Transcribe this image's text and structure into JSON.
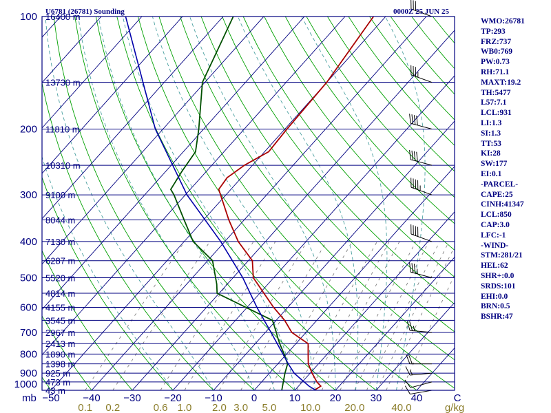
{
  "header": {
    "station": "U6781 (26781) Sounding",
    "time": "0000Z 25 JUN 25"
  },
  "indices": [
    "WMO:26781",
    "TP:293",
    "FRZ:737",
    "WB0:769",
    "PW:0.73",
    "RH:71.1",
    "MAXT:19.2",
    "TH:5477",
    "L57:7.1",
    "LCL:931",
    "LI:1.3",
    "SI:1.3",
    "TT:53",
    "KI:28",
    "SW:177",
    "EI:0.1",
    "-PARCEL-",
    "CAPE:25",
    "CINH:41347",
    "LCL:850",
    "CAP:3.0",
    "LFC:-1",
    "-WIND-",
    "STM:281/21",
    "HEL:62",
    "SHR+:0.0",
    "SRDS:101",
    "EHI:0.0",
    "BRN:0.5",
    "BSHR:47"
  ],
  "colors": {
    "frame": "#000080",
    "isobar": "#000080",
    "isotherm": "#000080",
    "dry_adiabat": "#00a000",
    "moist_adiabat": "#4aa0a0",
    "mixing_ratio": "#808080",
    "temperature": "#aa0000",
    "dewpoint": "#005000",
    "parcel": "#0000aa",
    "wind_barb": "#000000",
    "mixing_labels": "#8b7d2a"
  },
  "chart_data": {
    "type": "skew-t",
    "y_axis": {
      "unit_label": "mb",
      "scale": "log-pressure",
      "range": [
        1000,
        100
      ],
      "tick_labels": [
        "100",
        "200",
        "300",
        "400",
        "500",
        "600",
        "700",
        "800",
        "900",
        "1000"
      ],
      "tick_values": [
        100,
        200,
        300,
        400,
        500,
        600,
        700,
        800,
        900,
        1000
      ]
    },
    "x_axis": {
      "label": "",
      "tick_labels": [
        "−50",
        "−40",
        "−30",
        "−20",
        "−10",
        "0",
        "10",
        "20",
        "30",
        "40",
        "C"
      ],
      "tick_values": [
        -50,
        -40,
        -30,
        -20,
        -10,
        0,
        10,
        20,
        30,
        40,
        50
      ]
    },
    "mixing_ratio_axis": {
      "unit_label": "g/kg",
      "tick_labels": [
        "0.1",
        "0.2",
        "0.6",
        "1.0",
        "2.0",
        "3.0",
        "5.0",
        "10.0",
        "20.0",
        "40.0"
      ],
      "tick_values": [
        0.1,
        0.2,
        0.6,
        1.0,
        2.0,
        3.0,
        5.0,
        10.0,
        20.0,
        40.0
      ]
    },
    "height_levels": [
      {
        "p": 100,
        "label": "16400 m"
      },
      {
        "p": 150,
        "label": "13730 m"
      },
      {
        "p": 200,
        "label": "11810 m"
      },
      {
        "p": 250,
        "label": "10310 m"
      },
      {
        "p": 300,
        "label": "9100 m"
      },
      {
        "p": 350,
        "label": "8044 m"
      },
      {
        "p": 400,
        "label": "7130 m"
      },
      {
        "p": 450,
        "label": "6287 m"
      },
      {
        "p": 500,
        "label": "5520 m"
      },
      {
        "p": 550,
        "label": "4814 m"
      },
      {
        "p": 600,
        "label": "4155 m"
      },
      {
        "p": 650,
        "label": "3545 m"
      },
      {
        "p": 700,
        "label": "2967 m"
      },
      {
        "p": 750,
        "label": "2413 m"
      },
      {
        "p": 800,
        "label": "1890 m"
      },
      {
        "p": 850,
        "label": "1398 m"
      },
      {
        "p": 900,
        "label": "925 m"
      },
      {
        "p": 950,
        "label": "473 m"
      },
      {
        "p": 1000,
        "label": "43 m"
      }
    ],
    "series": [
      {
        "points": [
          {
            "p": 1000,
            "t": 14.8
          },
          {
            "p": 975,
            "t": 15.5
          },
          {
            "p": 950,
            "t": 13.6
          },
          {
            "p": 900,
            "t": 10.5
          },
          {
            "p": 850,
            "t": 7.5
          },
          {
            "p": 800,
            "t": 5.3
          },
          {
            "p": 750,
            "t": 3.0
          },
          {
            "p": 730,
            "t": 0.4
          },
          {
            "p": 700,
            "t": -3.5
          },
          {
            "p": 650,
            "t": -7.9
          },
          {
            "p": 600,
            "t": -13.5
          },
          {
            "p": 500,
            "t": -25.0
          },
          {
            "p": 450,
            "t": -29.0
          },
          {
            "p": 400,
            "t": -36.7
          },
          {
            "p": 350,
            "t": -43.8
          },
          {
            "p": 290,
            "t": -53.0
          },
          {
            "p": 270,
            "t": -53.5
          },
          {
            "p": 250,
            "t": -52.0
          },
          {
            "p": 230,
            "t": -49.0
          },
          {
            "p": 200,
            "t": -49.5
          },
          {
            "p": 150,
            "t": -50.0
          },
          {
            "p": 100,
            "t": -53.0
          }
        ]
      },
      {
        "points": [
          {
            "p": 1000,
            "t": 6.8
          },
          {
            "p": 900,
            "t": 3.8
          },
          {
            "p": 850,
            "t": 2.4
          },
          {
            "p": 800,
            "t": -0.6
          },
          {
            "p": 750,
            "t": -4.0
          },
          {
            "p": 720,
            "t": -6.0
          },
          {
            "p": 700,
            "t": -7.3
          },
          {
            "p": 650,
            "t": -10.9
          },
          {
            "p": 550,
            "t": -30.5
          },
          {
            "p": 520,
            "t": -32.6
          },
          {
            "p": 450,
            "t": -38.8
          },
          {
            "p": 400,
            "t": -47.8
          },
          {
            "p": 350,
            "t": -54.8
          },
          {
            "p": 300,
            "t": -62.8
          },
          {
            "p": 290,
            "t": -64.8
          },
          {
            "p": 260,
            "t": -66.0
          },
          {
            "p": 230,
            "t": -67.0
          },
          {
            "p": 200,
            "t": -71.2
          },
          {
            "p": 150,
            "t": -80.6
          },
          {
            "p": 100,
            "t": -87.5
          }
        ]
      },
      {
        "points": [
          {
            "p": 1000,
            "t": 15.2
          },
          {
            "p": 975,
            "t": 12.6
          },
          {
            "p": 940,
            "t": 9.6
          },
          {
            "p": 900,
            "t": 6.1
          },
          {
            "p": 850,
            "t": 2.6
          },
          {
            "p": 800,
            "t": -0.9
          },
          {
            "p": 700,
            "t": -8.6
          },
          {
            "p": 600,
            "t": -17.6
          },
          {
            "p": 500,
            "t": -27.6
          },
          {
            "p": 400,
            "t": -41.0
          },
          {
            "p": 300,
            "t": -59.6
          },
          {
            "p": 200,
            "t": -81.9
          },
          {
            "p": 100,
            "t": -114.0
          }
        ]
      }
    ],
    "winds": [
      {
        "p": 1000,
        "dir": 260,
        "spd": 10
      },
      {
        "p": 950,
        "dir": 255,
        "spd": 10
      },
      {
        "p": 900,
        "dir": 265,
        "spd": 15
      },
      {
        "p": 850,
        "dir": 270,
        "spd": 20
      },
      {
        "p": 700,
        "dir": 275,
        "spd": 25
      },
      {
        "p": 500,
        "dir": 285,
        "spd": 35
      },
      {
        "p": 400,
        "dir": 290,
        "spd": 40
      },
      {
        "p": 300,
        "dir": 290,
        "spd": 45
      },
      {
        "p": 250,
        "dir": 285,
        "spd": 40
      },
      {
        "p": 200,
        "dir": 285,
        "spd": 40
      },
      {
        "p": 150,
        "dir": 290,
        "spd": 35
      },
      {
        "p": 100,
        "dir": 290,
        "spd": 30
      }
    ],
    "grid": {
      "isobars": [
        100,
        150,
        200,
        250,
        300,
        350,
        400,
        450,
        500,
        550,
        600,
        650,
        700,
        750,
        800,
        850,
        900,
        950,
        1000
      ],
      "isotherms_from": -150,
      "isotherms_to": 50,
      "isotherm_step": 10,
      "dry_adiabats_from": -70,
      "dry_adiabats_to": 230,
      "dry_adiabat_step": 10,
      "moist_adiabats": [
        -20,
        -10,
        0,
        5,
        10,
        15,
        20,
        25,
        30,
        35
      ],
      "mixing_ratios": [
        0.1,
        0.2,
        0.6,
        1.0,
        2.0,
        3.0,
        5.0,
        8.0,
        10.0,
        12.0,
        16.0,
        20.0,
        24.0,
        28.0,
        32.0,
        40.0
      ]
    }
  }
}
